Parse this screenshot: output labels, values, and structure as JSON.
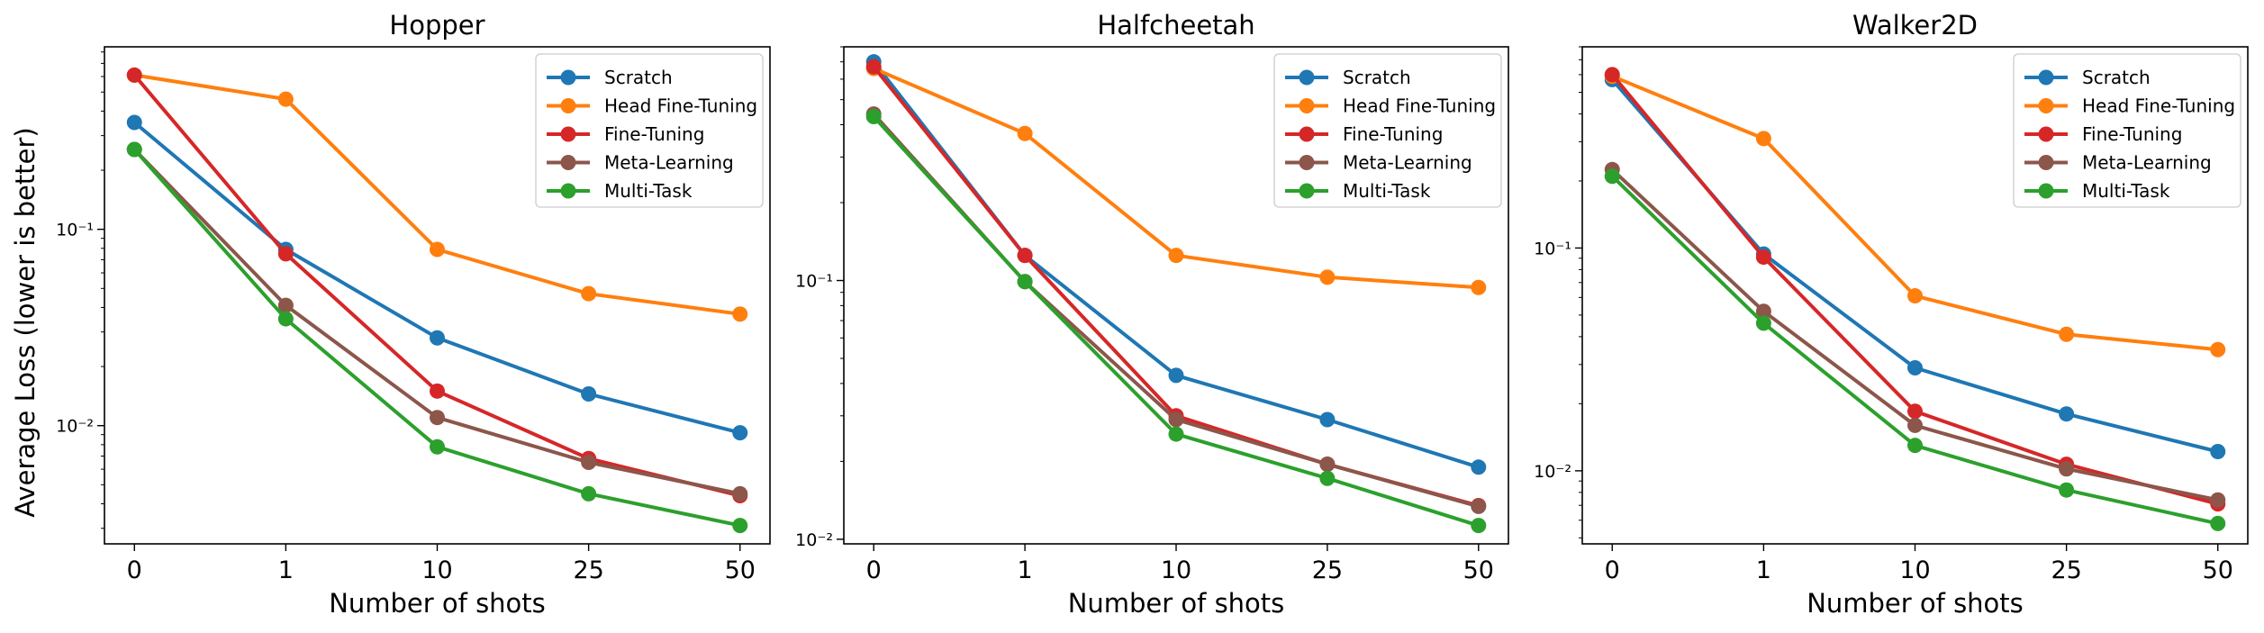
{
  "figure": {
    "ylabel": "Average Loss (lower is better)",
    "xlabel": "Number of shots"
  },
  "colors": {
    "Scratch": "#1f77b4",
    "Head Fine-Tuning": "#ff7f0e",
    "Fine-Tuning": "#d62728",
    "Meta-Learning": "#8c564b",
    "Multi-Task": "#2ca02c"
  },
  "chart_data": [
    {
      "type": "line",
      "title": "Hopper",
      "xlabel": "Number of shots",
      "ylabel": "Average Loss (lower is better)",
      "yscale": "log",
      "categories": [
        "0",
        "1",
        "10",
        "25",
        "50"
      ],
      "ytick_labels": [
        {
          "value": 0.1,
          "label": "10⁻¹"
        },
        {
          "value": 0.01,
          "label": "10⁻²"
        }
      ],
      "ylim": [
        0.0025,
        0.85
      ],
      "legend": "top-right",
      "series": [
        {
          "name": "Scratch",
          "values": [
            0.35,
            0.079,
            0.028,
            0.0145,
            0.0092
          ]
        },
        {
          "name": "Head Fine-Tuning",
          "values": [
            0.61,
            0.46,
            0.079,
            0.047,
            0.037
          ]
        },
        {
          "name": "Fine-Tuning",
          "values": [
            0.61,
            0.075,
            0.015,
            0.0068,
            0.0044
          ]
        },
        {
          "name": "Meta-Learning",
          "values": [
            0.255,
            0.041,
            0.011,
            0.0065,
            0.0045
          ]
        },
        {
          "name": "Multi-Task",
          "values": [
            0.255,
            0.035,
            0.0078,
            0.0045,
            0.0031
          ]
        }
      ]
    },
    {
      "type": "line",
      "title": "Halfcheetah",
      "xlabel": "Number of shots",
      "ylabel": "",
      "yscale": "log",
      "categories": [
        "0",
        "1",
        "10",
        "25",
        "50"
      ],
      "ytick_labels": [
        {
          "value": 0.1,
          "label": "10⁻¹"
        },
        {
          "value": 0.01,
          "label": "10⁻²"
        }
      ],
      "ylim": [
        0.0096,
        0.8
      ],
      "legend": "top-right",
      "series": [
        {
          "name": "Scratch",
          "values": [
            0.7,
            0.125,
            0.043,
            0.029,
            0.019
          ]
        },
        {
          "name": "Head Fine-Tuning",
          "values": [
            0.66,
            0.37,
            0.125,
            0.103,
            0.094
          ]
        },
        {
          "name": "Fine-Tuning",
          "values": [
            0.67,
            0.125,
            0.03,
            0.0195,
            0.0135
          ]
        },
        {
          "name": "Meta-Learning",
          "values": [
            0.44,
            0.099,
            0.029,
            0.0195,
            0.0134
          ]
        },
        {
          "name": "Multi-Task",
          "values": [
            0.43,
            0.099,
            0.0255,
            0.0172,
            0.0113
          ]
        }
      ]
    },
    {
      "type": "line",
      "title": "Walker2D",
      "xlabel": "Number of shots",
      "ylabel": "",
      "yscale": "log",
      "categories": [
        "0",
        "1",
        "10",
        "25",
        "50"
      ],
      "ytick_labels": [
        {
          "value": 0.1,
          "label": "10⁻¹"
        },
        {
          "value": 0.01,
          "label": "10⁻²"
        }
      ],
      "ylim": [
        0.0047,
        0.8
      ],
      "legend": "top-right",
      "series": [
        {
          "name": "Scratch",
          "values": [
            0.57,
            0.094,
            0.029,
            0.018,
            0.0122
          ]
        },
        {
          "name": "Head Fine-Tuning",
          "values": [
            0.59,
            0.31,
            0.061,
            0.041,
            0.035
          ]
        },
        {
          "name": "Fine-Tuning",
          "values": [
            0.6,
            0.091,
            0.0185,
            0.0107,
            0.0071
          ]
        },
        {
          "name": "Meta-Learning",
          "values": [
            0.225,
            0.052,
            0.016,
            0.0102,
            0.0074
          ]
        },
        {
          "name": "Multi-Task",
          "values": [
            0.21,
            0.046,
            0.013,
            0.0082,
            0.0058
          ]
        }
      ]
    }
  ]
}
